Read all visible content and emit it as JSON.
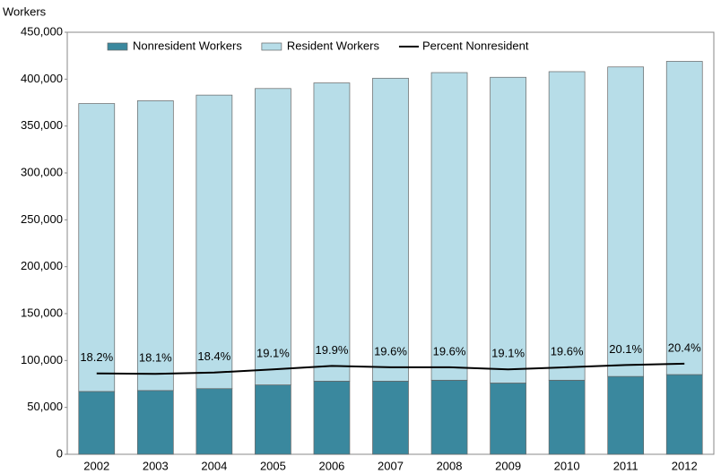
{
  "chart_data": {
    "type": "bar",
    "y_axis_label": "Workers",
    "categories": [
      "2002",
      "2003",
      "2004",
      "2005",
      "2006",
      "2007",
      "2008",
      "2009",
      "2010",
      "2011",
      "2012"
    ],
    "series": [
      {
        "name": "Nonresident Workers",
        "color": "#3a889e",
        "values": [
          67000,
          68000,
          70000,
          74000,
          78000,
          78000,
          79000,
          76000,
          79000,
          83000,
          85000
        ]
      },
      {
        "name": "Resident Workers",
        "color": "#b7dde8",
        "values": [
          307000,
          309000,
          313000,
          316000,
          318000,
          323000,
          328000,
          326000,
          329000,
          330000,
          334000
        ]
      },
      {
        "name": "Percent Nonresident",
        "type": "line",
        "axis": "y2",
        "color": "#000000",
        "values": [
          18.2,
          18.1,
          18.4,
          19.1,
          19.9,
          19.6,
          19.6,
          19.1,
          19.6,
          20.1,
          20.4
        ],
        "value_labels": [
          "18.2%",
          "18.1%",
          "18.4%",
          "19.1%",
          "19.9%",
          "19.6%",
          "19.6%",
          "19.1%",
          "19.6%",
          "20.1%",
          "20.4%"
        ]
      }
    ],
    "stacked": true,
    "ylim": [
      0,
      450000
    ],
    "yticks": [
      {
        "value": 0,
        "label": "0"
      },
      {
        "value": 50000,
        "label": "50,000"
      },
      {
        "value": 100000,
        "label": "100,000"
      },
      {
        "value": 150000,
        "label": "150,000"
      },
      {
        "value": 200000,
        "label": "200,000"
      },
      {
        "value": 250000,
        "label": "250,000"
      },
      {
        "value": 300000,
        "label": "300,000"
      },
      {
        "value": 350000,
        "label": "350,000"
      },
      {
        "value": 400000,
        "label": "400,000"
      },
      {
        "value": 450000,
        "label": "450,000"
      }
    ],
    "y2lim": [
      0,
      95
    ],
    "legend": "top"
  }
}
